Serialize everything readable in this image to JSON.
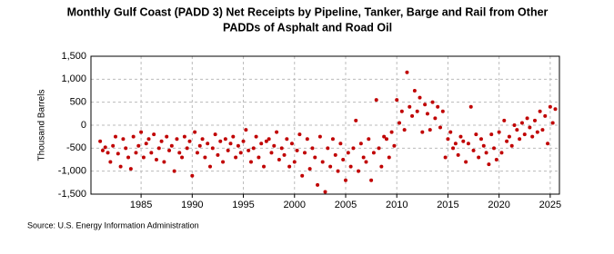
{
  "chart_data": {
    "type": "scatter",
    "title_lines": [
      "Monthly Gulf Coast (PADD 3) Net Receipts by Pipeline, Tanker, Barge and Rail from Other",
      "PADDs of Asphalt and Road Oil"
    ],
    "y_label": "Thousand Barrels",
    "source": "Source: U.S. Energy Information Administration",
    "color": "#c00000",
    "grid": true,
    "xlim": [
      1980.1,
      2025.9
    ],
    "xticks": [
      1985,
      1990,
      1995,
      2000,
      2005,
      2010,
      2015,
      2020,
      2025
    ],
    "ylim": [
      -1500,
      1500
    ],
    "yticks": [
      {
        "value": -1500,
        "label": "-1,500"
      },
      {
        "value": -1000,
        "label": "-1,000"
      },
      -500,
      0,
      500,
      {
        "value": 1000,
        "label": "1,000"
      },
      {
        "value": 1500,
        "label": "1,500"
      }
    ],
    "x": [
      1981,
      1981.25,
      1981.5,
      1981.75,
      1982,
      1982.25,
      1982.5,
      1982.75,
      1983,
      1983.25,
      1983.5,
      1983.75,
      1984,
      1984.25,
      1984.5,
      1984.75,
      1985,
      1985.25,
      1985.5,
      1985.75,
      1986,
      1986.25,
      1986.5,
      1986.75,
      1987,
      1987.25,
      1987.5,
      1987.75,
      1988,
      1988.25,
      1988.5,
      1988.75,
      1989,
      1989.25,
      1989.5,
      1989.75,
      1990,
      1990.25,
      1990.5,
      1990.75,
      1991,
      1991.25,
      1991.5,
      1991.75,
      1992,
      1992.25,
      1992.5,
      1992.75,
      1993,
      1993.25,
      1993.5,
      1993.75,
      1994,
      1994.25,
      1994.5,
      1994.75,
      1995,
      1995.25,
      1995.5,
      1995.75,
      1996,
      1996.25,
      1996.5,
      1996.75,
      1997,
      1997.25,
      1997.5,
      1997.75,
      1998,
      1998.25,
      1998.5,
      1998.75,
      1999,
      1999.25,
      1999.5,
      1999.75,
      2000,
      2000.25,
      2000.5,
      2000.75,
      2001,
      2001.25,
      2001.5,
      2001.75,
      2002,
      2002.25,
      2002.5,
      2002.75,
      2003,
      2003.25,
      2003.5,
      2003.75,
      2004,
      2004.25,
      2004.5,
      2004.75,
      2005,
      2005.25,
      2005.5,
      2005.75,
      2006,
      2006.25,
      2006.5,
      2006.75,
      2007,
      2007.25,
      2007.5,
      2007.75,
      2008,
      2008.25,
      2008.5,
      2008.75,
      2009,
      2009.25,
      2009.5,
      2009.75,
      2010,
      2010.25,
      2010.5,
      2010.75,
      2011,
      2011.25,
      2011.5,
      2011.75,
      2012,
      2012.25,
      2012.5,
      2012.75,
      2013,
      2013.25,
      2013.5,
      2013.75,
      2014,
      2014.25,
      2014.5,
      2014.75,
      2015,
      2015.25,
      2015.5,
      2015.75,
      2016,
      2016.25,
      2016.5,
      2016.75,
      2017,
      2017.25,
      2017.5,
      2017.75,
      2018,
      2018.25,
      2018.5,
      2018.75,
      2019,
      2019.25,
      2019.5,
      2019.75,
      2020,
      2020.25,
      2020.5,
      2020.75,
      2021,
      2021.25,
      2021.5,
      2021.75,
      2022,
      2022.25,
      2022.5,
      2022.75,
      2023,
      2023.25,
      2023.5,
      2023.75,
      2024,
      2024.25,
      2024.5,
      2024.75,
      2025,
      2025.25,
      2025.5
    ],
    "values": [
      -350,
      -550,
      -480,
      -600,
      -800,
      -450,
      -250,
      -620,
      -900,
      -300,
      -500,
      -700,
      -950,
      -250,
      -600,
      -450,
      -150,
      -700,
      -400,
      -300,
      -600,
      -200,
      -750,
      -500,
      -350,
      -800,
      -250,
      -550,
      -450,
      -1000,
      -300,
      -600,
      -700,
      -250,
      -500,
      -350,
      -1100,
      -150,
      -600,
      -450,
      -300,
      -700,
      -400,
      -900,
      -500,
      -200,
      -650,
      -350,
      -800,
      -300,
      -550,
      -400,
      -250,
      -700,
      -450,
      -600,
      -350,
      -100,
      -550,
      -800,
      -500,
      -250,
      -700,
      -400,
      -900,
      -350,
      -300,
      -600,
      -450,
      -150,
      -750,
      -500,
      -650,
      -300,
      -900,
      -400,
      -800,
      -550,
      -200,
      -1100,
      -600,
      -300,
      -950,
      -500,
      -700,
      -1300,
      -250,
      -800,
      -1450,
      -500,
      -900,
      -300,
      -650,
      -1000,
      -400,
      -750,
      -1200,
      -600,
      -900,
      -500,
      100,
      -1000,
      -400,
      -700,
      -800,
      -300,
      -1200,
      -600,
      550,
      -500,
      -900,
      -250,
      -300,
      -700,
      -150,
      -450,
      550,
      50,
      300,
      -100,
      1150,
      400,
      200,
      750,
      300,
      600,
      -150,
      450,
      250,
      -100,
      500,
      150,
      400,
      -50,
      300,
      -700,
      -300,
      -150,
      -500,
      -400,
      -650,
      -250,
      -350,
      -800,
      -400,
      400,
      -550,
      -200,
      -700,
      -300,
      -450,
      -600,
      -850,
      -200,
      -500,
      -750,
      -150,
      -600,
      100,
      -350,
      -250,
      -450,
      0,
      -100,
      -300,
      50,
      -200,
      150,
      -50,
      -250,
      100,
      -150,
      300,
      -100,
      200,
      -400,
      400,
      50,
      350
    ]
  }
}
